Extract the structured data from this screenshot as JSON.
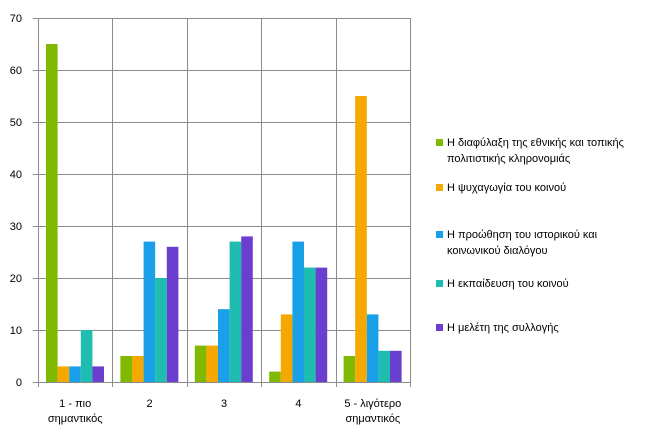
{
  "chart_data": {
    "type": "bar",
    "title": "",
    "xlabel": "",
    "ylabel": "",
    "ylim": [
      0,
      70
    ],
    "yticks": [
      0,
      10,
      20,
      30,
      40,
      50,
      60,
      70
    ],
    "grid": true,
    "legend_position": "right",
    "categories": [
      "1 - πιο σημαντικός",
      "2",
      "3",
      "4",
      "5 - λιγότερο σημαντικός"
    ],
    "series": [
      {
        "name": "Η διαφύλαξη της εθνικής και τοπικής πολιτιστικής κληρονομιάς",
        "color": "#7fba00",
        "values": [
          65,
          5,
          7,
          2,
          5
        ]
      },
      {
        "name": "Η ψυχαγωγία του κοινού",
        "color": "#f5a800",
        "values": [
          3,
          5,
          7,
          13,
          55
        ]
      },
      {
        "name": "Η προώθηση του ιστορικού και κοινωνικού διαλόγου",
        "color": "#1aa0e8",
        "values": [
          3,
          27,
          14,
          27,
          13
        ]
      },
      {
        "name": "Η εκπαίδευση του κοινού",
        "color": "#1fbcb0",
        "values": [
          10,
          20,
          27,
          22,
          6
        ]
      },
      {
        "name": "Η μελέτη της συλλογής",
        "color": "#6a3fd0",
        "values": [
          3,
          26,
          28,
          22,
          6
        ]
      }
    ]
  }
}
